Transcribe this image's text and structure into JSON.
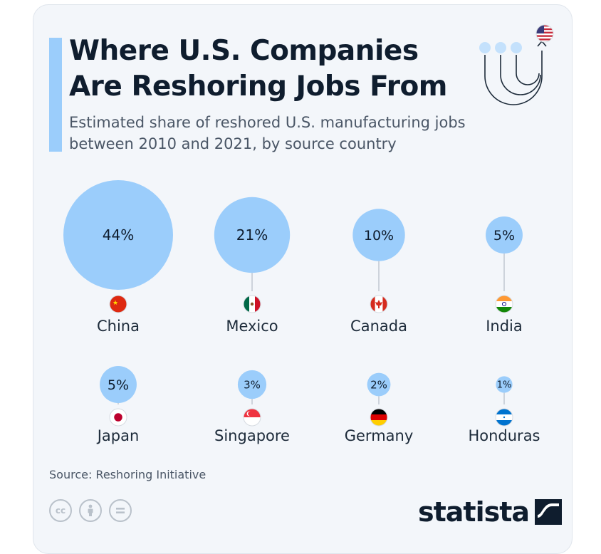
{
  "header": {
    "title": "Where U.S. Companies Are Reshoring Jobs From",
    "subtitle": "Estimated share of reshored U.S. manufacturing jobs between 2010 and 2021, by source country"
  },
  "chart_data": {
    "type": "bubble",
    "unit": "%",
    "points": [
      {
        "country": "China",
        "value": 44,
        "label": "44%",
        "flag": "china-flag"
      },
      {
        "country": "Mexico",
        "value": 21,
        "label": "21%",
        "flag": "mexico-flag"
      },
      {
        "country": "Canada",
        "value": 10,
        "label": "10%",
        "flag": "canada-flag"
      },
      {
        "country": "India",
        "value": 5,
        "label": "5%",
        "flag": "india-flag"
      },
      {
        "country": "Japan",
        "value": 5,
        "label": "5%",
        "flag": "japan-flag"
      },
      {
        "country": "Singapore",
        "value": 3,
        "label": "3%",
        "flag": "singapore-flag"
      },
      {
        "country": "Germany",
        "value": 2,
        "label": "2%",
        "flag": "germany-flag"
      },
      {
        "country": "Honduras",
        "value": 1,
        "label": "1%",
        "flag": "honduras-flag"
      }
    ]
  },
  "footer": {
    "source": "Source: Reshoring Initiative",
    "license_icons": [
      "cc-icon",
      "attribution-icon",
      "no-derivatives-icon"
    ],
    "brand": "statista"
  },
  "colors": {
    "bubble": "#9bcdfb",
    "accent_bar": "#9bcdfb",
    "text_dark": "#0f1d2e",
    "text_muted": "#4a5666"
  }
}
